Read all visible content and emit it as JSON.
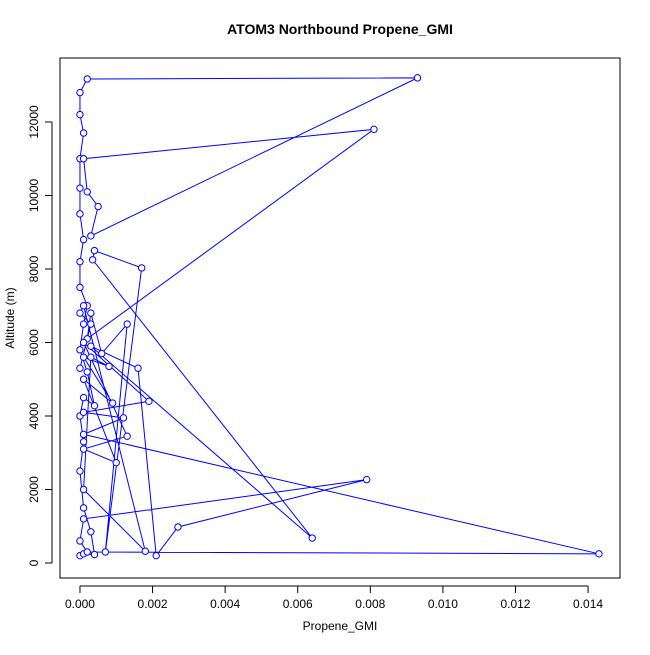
{
  "chart_data": {
    "type": "scatter_line",
    "title": "ATOM3 Northbound Propene_GMI",
    "x_label": "Propene_GMI",
    "y_label": "Altitude (m)",
    "color": "#0000ff",
    "xlim": [
      -0.00055,
      0.01488
    ],
    "ylim": [
      -408,
      13741
    ],
    "xticks": [
      {
        "value": 0,
        "label": "0.000"
      },
      {
        "value": 0.002,
        "label": "0.002"
      },
      {
        "value": 0.004,
        "label": "0.004"
      },
      {
        "value": 0.006,
        "label": "0.006"
      },
      {
        "value": 0.008,
        "label": "0.008"
      },
      {
        "value": 0.01,
        "label": "0.010"
      },
      {
        "value": 0.012,
        "label": "0.012"
      },
      {
        "value": 0.014,
        "label": "0.014"
      }
    ],
    "yticks": [
      0,
      2000,
      4000,
      6000,
      8000,
      10000,
      12000
    ],
    "x": [
      0,
      0.0001,
      0.0004,
      0.0003,
      0.0001,
      0,
      0.0001,
      0,
      0.0001,
      0.0004,
      0.0002,
      0,
      0.0001,
      0.0002,
      0,
      0,
      0.0001,
      0,
      0,
      0,
      0.0001,
      0,
      0,
      0.0002,
      0.0093,
      0.0003,
      0.0005,
      0.0002,
      0.0001,
      0.0081,
      0.0002,
      0.0003,
      0.0006,
      0.0013,
      0.0007,
      0.0017,
      0.0004,
      0.00035,
      0.0064,
      0.0003,
      0.0016,
      0.0021,
      0.0027,
      0.0079,
      0.0001,
      0,
      0.0002,
      0.0143,
      0.0001,
      0.0012,
      0.0001,
      0.0019,
      0.0001,
      0.0013,
      0.0001,
      0.001,
      0.0001,
      0.0009,
      0.0001,
      0.0008,
      0.0003,
      0.0001,
      0.0018,
      0.0001,
      0,
      0.0003,
      0
    ],
    "y": [
      200,
      250,
      230,
      850,
      1500,
      2500,
      3300,
      4000,
      4500,
      4280,
      5200,
      5800,
      6500,
      7000,
      7500,
      8200,
      8800,
      9500,
      10200,
      11000,
      11700,
      12200,
      12800,
      13170,
      13200,
      8900,
      9700,
      10100,
      11000,
      11800,
      6100,
      6800,
      5700,
      6500,
      300,
      8030,
      8500,
      8250,
      680,
      5900,
      5300,
      200,
      980,
      2270,
      1200,
      600,
      300,
      250,
      3500,
      3950,
      4100,
      4400,
      6000,
      3450,
      3100,
      2730,
      5000,
      4350,
      5600,
      5350,
      5600,
      2000,
      320,
      7000,
      6800,
      6500,
      5300
    ]
  }
}
